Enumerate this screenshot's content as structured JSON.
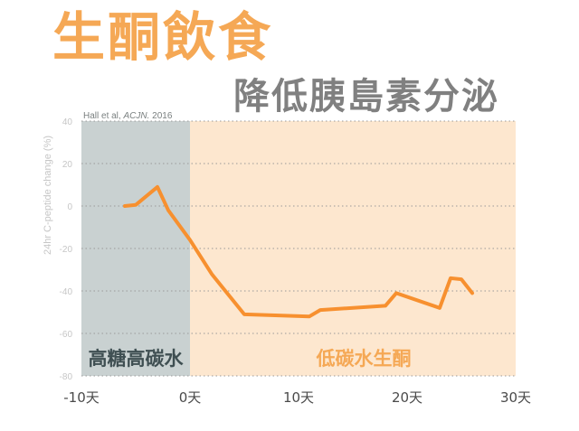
{
  "title": "生酮飲食",
  "subtitle": "降低胰島素分泌",
  "colors": {
    "title": "#f5a855",
    "subtitle": "#808080",
    "line": "#f7902f",
    "region_high": "#c9d1d1",
    "region_low": "#fde7cf",
    "label_high": "#3f4f52",
    "label_low": "#f5a855",
    "axis_text": "#4a4a4a",
    "y_tick_text": "#c6c6c6"
  },
  "chart_data": {
    "type": "line",
    "ylabel": "24hr C-peptide change (%)",
    "citation_prefix": "Hall et al, ",
    "citation_journal": "ACJN.",
    "citation_year": " 2016",
    "xlim": [
      -10,
      30
    ],
    "ylim": [
      -80,
      40
    ],
    "x_ticks": [
      -10,
      0,
      10,
      20,
      30
    ],
    "x_tick_labels": [
      "-10天",
      "0天",
      "10天",
      "20天",
      "30天"
    ],
    "y_ticks": [
      40,
      20,
      0,
      -20,
      -40,
      -60,
      -80
    ],
    "y_tick_labels": [
      "40",
      "20",
      "0",
      "-20",
      "-40",
      "-60",
      "-80"
    ],
    "grid": "horizontal dotted",
    "regions": [
      {
        "label": "高糖高碳水",
        "from": -10,
        "to": 0
      },
      {
        "label": "低碳水生酮",
        "from": 0,
        "to": 30
      }
    ],
    "series": [
      {
        "x": [
          -6,
          -5,
          -3,
          -2,
          0,
          2,
          5,
          11,
          12,
          18,
          19,
          23,
          24,
          25,
          26
        ],
        "y": [
          0,
          0.5,
          9,
          -2,
          -16,
          -32,
          -51,
          -52,
          -49,
          -47,
          -41,
          -48,
          -34,
          -34.5,
          -41
        ]
      }
    ]
  }
}
